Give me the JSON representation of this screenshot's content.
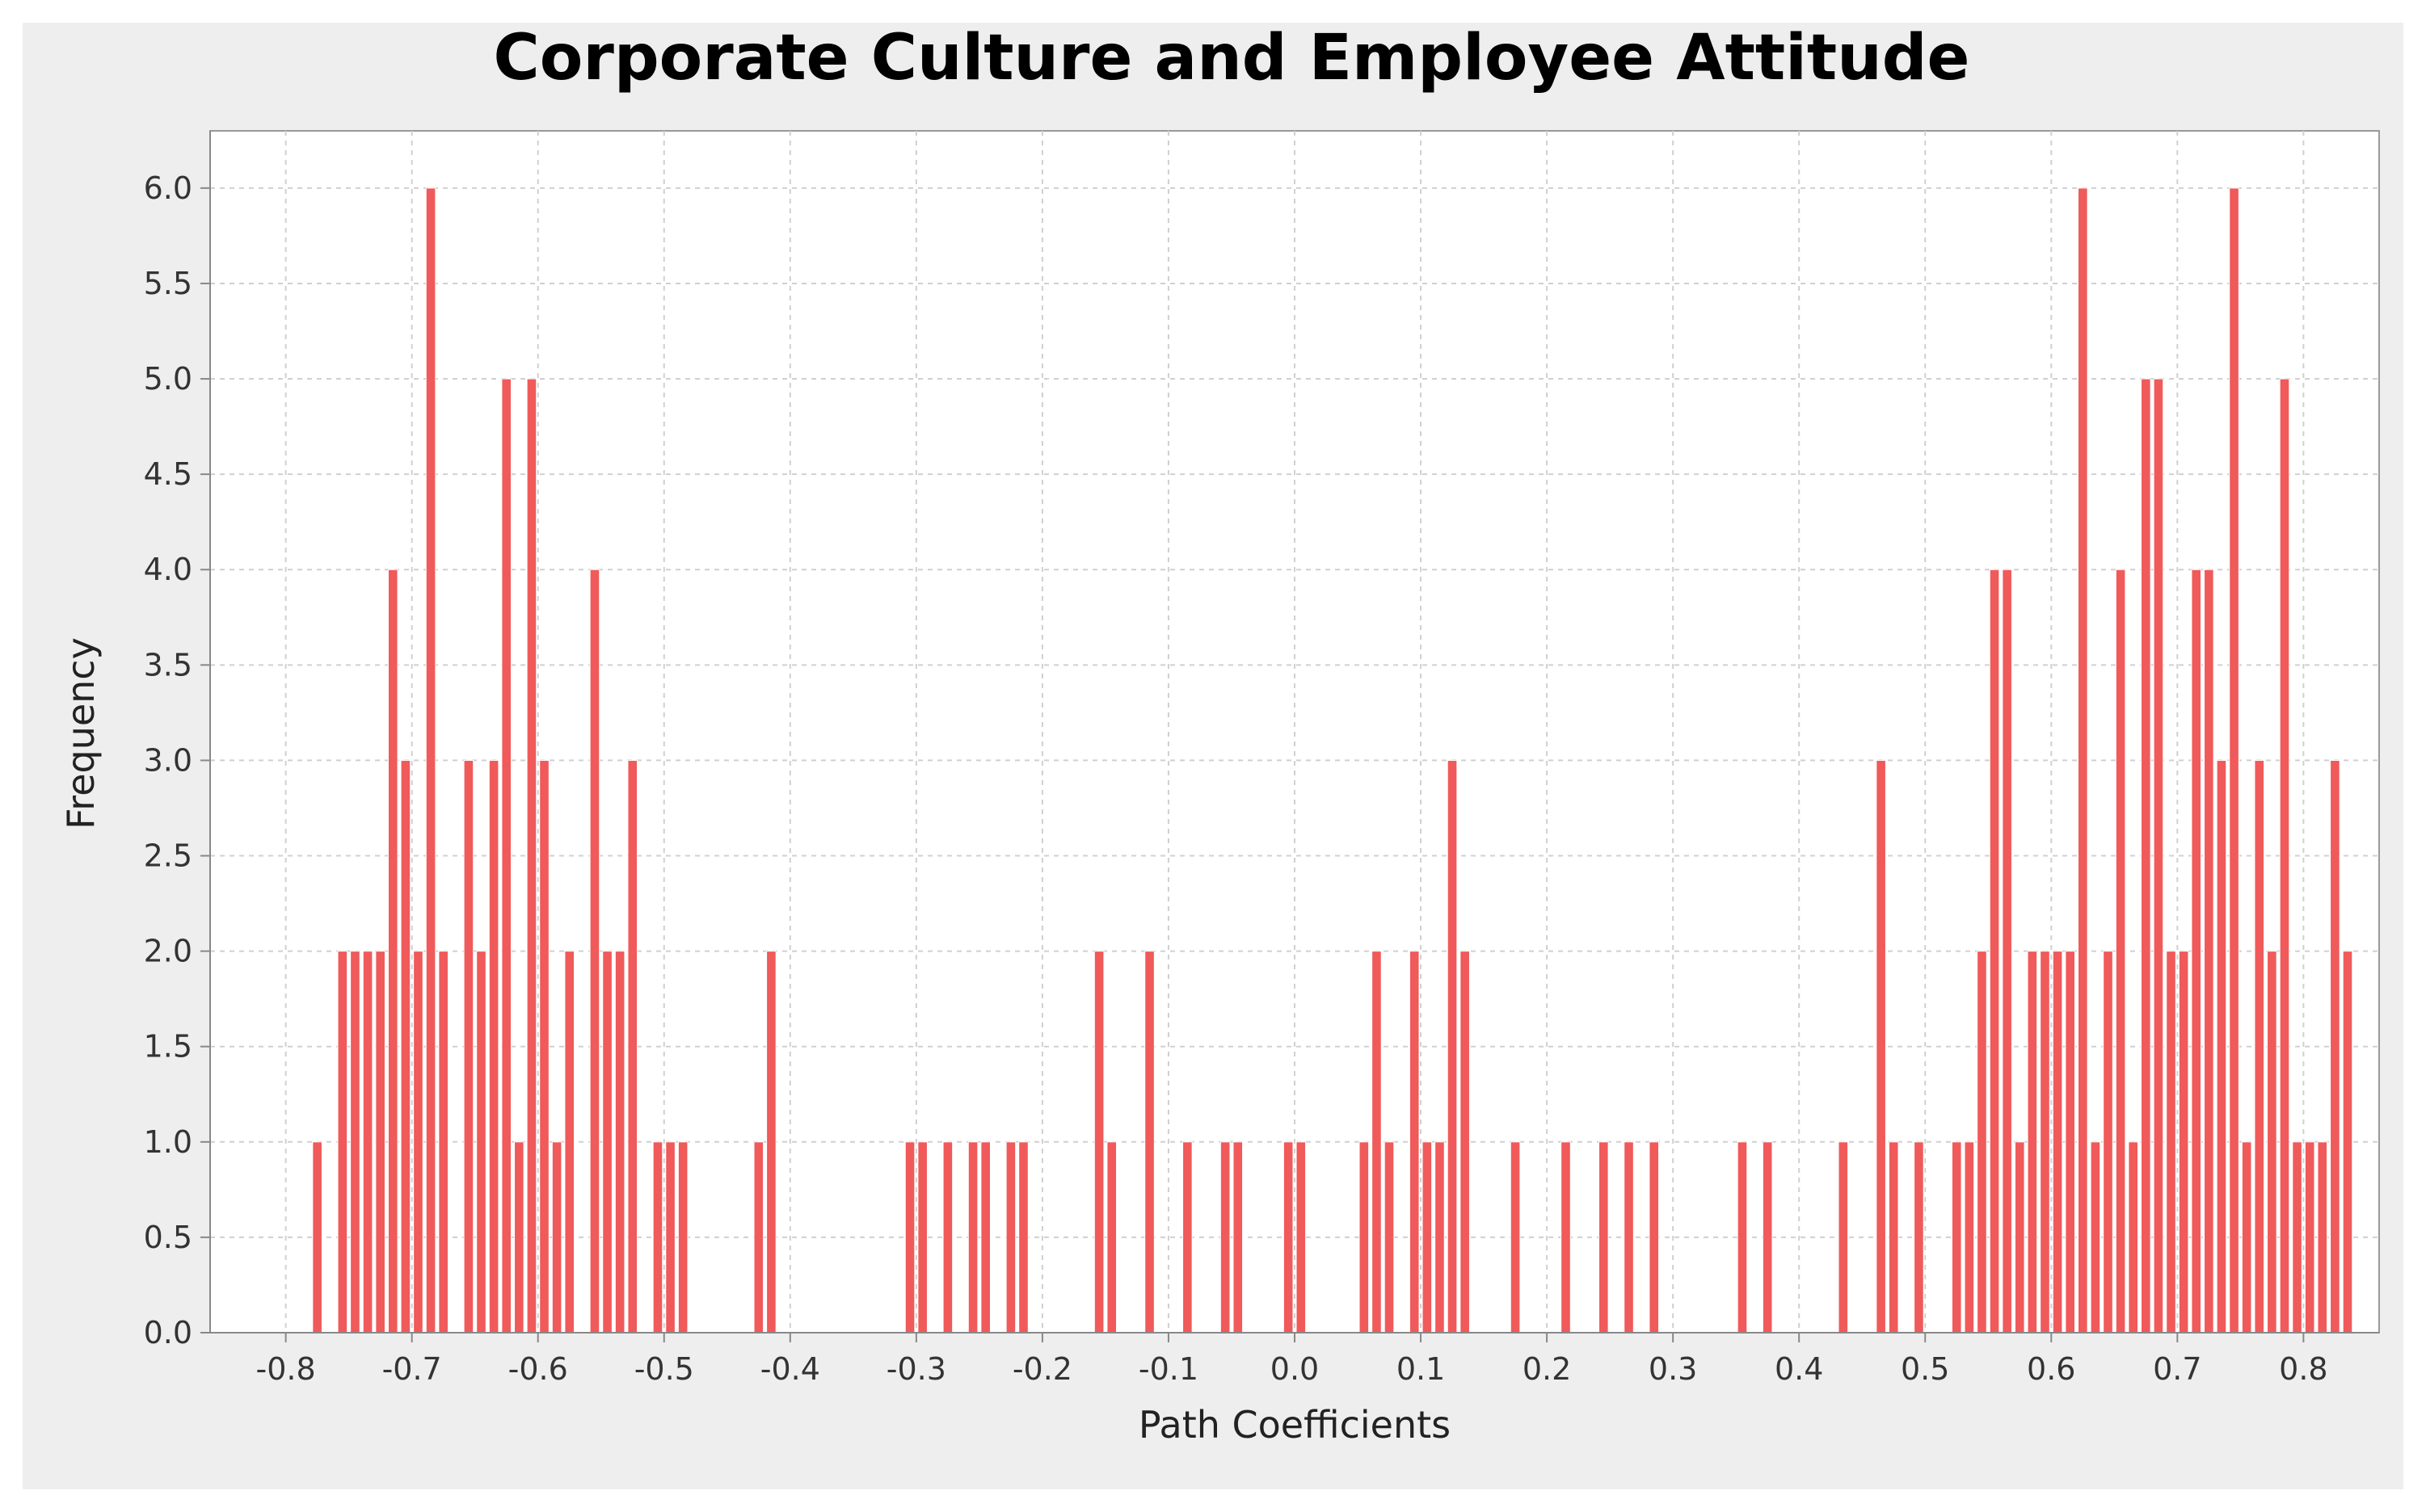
{
  "chart_data": {
    "type": "bar",
    "title": "Corporate Culture and Employee Attitude",
    "xlabel": "Path Coefficients",
    "ylabel": "Frequency",
    "xlim": [
      -0.86,
      0.86
    ],
    "ylim": [
      0,
      6.3
    ],
    "bin_width": 0.01,
    "x_ticks": [
      -0.8,
      -0.7,
      -0.6,
      -0.5,
      -0.4,
      -0.3,
      -0.2,
      -0.1,
      0.0,
      0.1,
      0.2,
      0.3,
      0.4,
      0.5,
      0.6,
      0.7,
      0.8
    ],
    "x_tick_labels": [
      "-0.8",
      "-0.7",
      "-0.6",
      "-0.5",
      "-0.4",
      "-0.3",
      "-0.2",
      "-0.1",
      "0.0",
      "0.1",
      "0.2",
      "0.3",
      "0.4",
      "0.5",
      "0.6",
      "0.7",
      "0.8"
    ],
    "y_ticks": [
      0.0,
      0.5,
      1.0,
      1.5,
      2.0,
      2.5,
      3.0,
      3.5,
      4.0,
      4.5,
      5.0,
      5.5,
      6.0
    ],
    "y_tick_labels": [
      "0.0",
      "0.5",
      "1.0",
      "1.5",
      "2.0",
      "2.5",
      "3.0",
      "3.5",
      "4.0",
      "4.5",
      "5.0",
      "5.5",
      "6.0"
    ],
    "grid": true,
    "bar_color": "#f05a5a",
    "plot_background": "#ffffff",
    "panel_background": "#eeeeee",
    "grid_color": "#d0d0d0",
    "values": [
      {
        "x": -0.775,
        "y": 1
      },
      {
        "x": -0.755,
        "y": 2
      },
      {
        "x": -0.745,
        "y": 2
      },
      {
        "x": -0.735,
        "y": 2
      },
      {
        "x": -0.725,
        "y": 2
      },
      {
        "x": -0.715,
        "y": 4
      },
      {
        "x": -0.705,
        "y": 3
      },
      {
        "x": -0.695,
        "y": 2
      },
      {
        "x": -0.685,
        "y": 6
      },
      {
        "x": -0.675,
        "y": 2
      },
      {
        "x": -0.655,
        "y": 3
      },
      {
        "x": -0.645,
        "y": 2
      },
      {
        "x": -0.635,
        "y": 3
      },
      {
        "x": -0.625,
        "y": 5
      },
      {
        "x": -0.615,
        "y": 1
      },
      {
        "x": -0.605,
        "y": 5
      },
      {
        "x": -0.595,
        "y": 3
      },
      {
        "x": -0.585,
        "y": 1
      },
      {
        "x": -0.575,
        "y": 2
      },
      {
        "x": -0.555,
        "y": 4
      },
      {
        "x": -0.545,
        "y": 2
      },
      {
        "x": -0.535,
        "y": 2
      },
      {
        "x": -0.525,
        "y": 3
      },
      {
        "x": -0.505,
        "y": 1
      },
      {
        "x": -0.495,
        "y": 1
      },
      {
        "x": -0.485,
        "y": 1
      },
      {
        "x": -0.425,
        "y": 1
      },
      {
        "x": -0.415,
        "y": 2
      },
      {
        "x": -0.305,
        "y": 1
      },
      {
        "x": -0.295,
        "y": 1
      },
      {
        "x": -0.275,
        "y": 1
      },
      {
        "x": -0.255,
        "y": 1
      },
      {
        "x": -0.245,
        "y": 1
      },
      {
        "x": -0.225,
        "y": 1
      },
      {
        "x": -0.215,
        "y": 1
      },
      {
        "x": -0.155,
        "y": 2
      },
      {
        "x": -0.145,
        "y": 1
      },
      {
        "x": -0.115,
        "y": 2
      },
      {
        "x": -0.085,
        "y": 1
      },
      {
        "x": -0.055,
        "y": 1
      },
      {
        "x": -0.045,
        "y": 1
      },
      {
        "x": -0.005,
        "y": 1
      },
      {
        "x": 0.005,
        "y": 1
      },
      {
        "x": 0.055,
        "y": 1
      },
      {
        "x": 0.065,
        "y": 2
      },
      {
        "x": 0.075,
        "y": 1
      },
      {
        "x": 0.095,
        "y": 2
      },
      {
        "x": 0.105,
        "y": 1
      },
      {
        "x": 0.115,
        "y": 1
      },
      {
        "x": 0.125,
        "y": 3
      },
      {
        "x": 0.135,
        "y": 2
      },
      {
        "x": 0.175,
        "y": 1
      },
      {
        "x": 0.215,
        "y": 1
      },
      {
        "x": 0.245,
        "y": 1
      },
      {
        "x": 0.265,
        "y": 1
      },
      {
        "x": 0.285,
        "y": 1
      },
      {
        "x": 0.355,
        "y": 1
      },
      {
        "x": 0.375,
        "y": 1
      },
      {
        "x": 0.435,
        "y": 1
      },
      {
        "x": 0.465,
        "y": 3
      },
      {
        "x": 0.475,
        "y": 1
      },
      {
        "x": 0.495,
        "y": 1
      },
      {
        "x": 0.525,
        "y": 1
      },
      {
        "x": 0.535,
        "y": 1
      },
      {
        "x": 0.545,
        "y": 2
      },
      {
        "x": 0.555,
        "y": 4
      },
      {
        "x": 0.565,
        "y": 4
      },
      {
        "x": 0.575,
        "y": 1
      },
      {
        "x": 0.585,
        "y": 2
      },
      {
        "x": 0.595,
        "y": 2
      },
      {
        "x": 0.605,
        "y": 2
      },
      {
        "x": 0.615,
        "y": 2
      },
      {
        "x": 0.625,
        "y": 6
      },
      {
        "x": 0.635,
        "y": 1
      },
      {
        "x": 0.645,
        "y": 2
      },
      {
        "x": 0.655,
        "y": 4
      },
      {
        "x": 0.665,
        "y": 1
      },
      {
        "x": 0.675,
        "y": 5
      },
      {
        "x": 0.685,
        "y": 5
      },
      {
        "x": 0.695,
        "y": 2
      },
      {
        "x": 0.705,
        "y": 2
      },
      {
        "x": 0.715,
        "y": 4
      },
      {
        "x": 0.725,
        "y": 4
      },
      {
        "x": 0.735,
        "y": 3
      },
      {
        "x": 0.745,
        "y": 6
      },
      {
        "x": 0.755,
        "y": 1
      },
      {
        "x": 0.765,
        "y": 3
      },
      {
        "x": 0.775,
        "y": 2
      },
      {
        "x": 0.785,
        "y": 5
      },
      {
        "x": 0.795,
        "y": 1
      },
      {
        "x": 0.805,
        "y": 1
      },
      {
        "x": 0.815,
        "y": 1
      },
      {
        "x": 0.825,
        "y": 3
      },
      {
        "x": 0.835,
        "y": 2
      }
    ]
  }
}
